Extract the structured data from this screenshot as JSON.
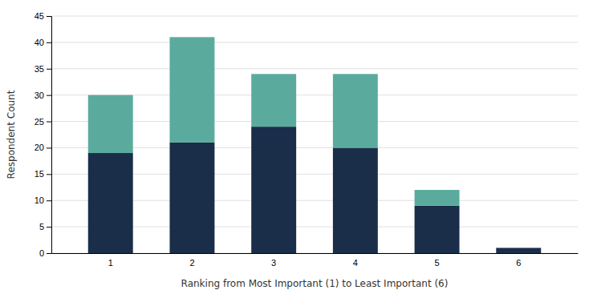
{
  "chart_data": {
    "type": "bar",
    "stacked": true,
    "categories": [
      "1",
      "2",
      "3",
      "4",
      "5",
      "6"
    ],
    "series": [
      {
        "color": "#1a2e4a",
        "values": [
          19,
          21,
          24,
          20,
          9,
          1
        ]
      },
      {
        "color": "#5aab9e",
        "values": [
          11,
          20,
          10,
          14,
          3,
          0
        ]
      }
    ],
    "xlabel": "Ranking from Most Important (1) to Least Important (6)",
    "ylabel": "Respondent Count",
    "ylim": [
      0,
      45
    ],
    "yticks": [
      0,
      5,
      10,
      15,
      20,
      25,
      30,
      35,
      40,
      45
    ],
    "grid": true
  }
}
